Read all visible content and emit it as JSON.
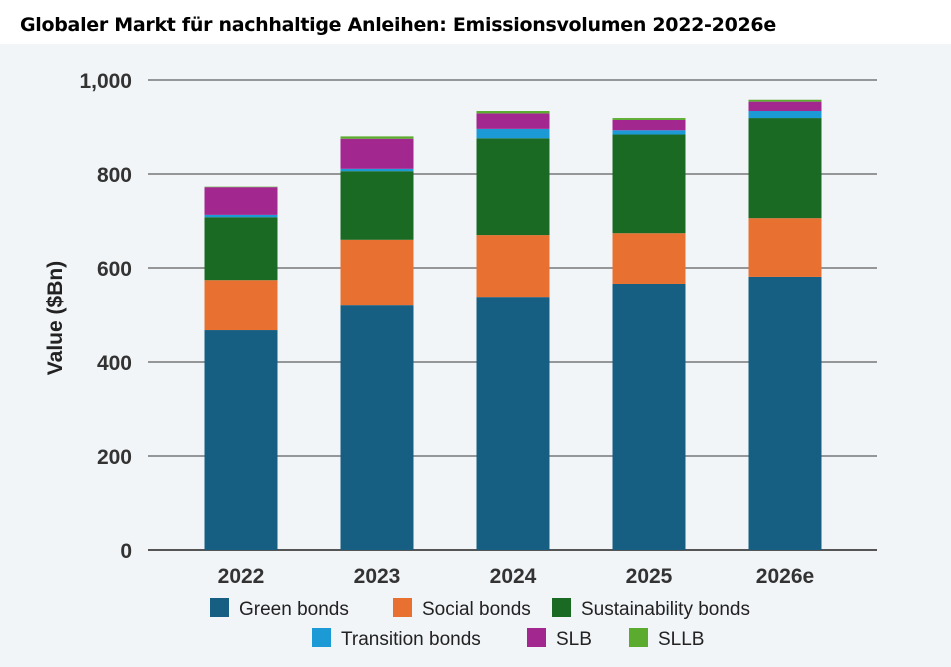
{
  "title": "Globaler Markt für nachhaltige Anleihen: Emissionsvolumen 2022-2026e",
  "chart_data": {
    "type": "bar",
    "stacked": true,
    "title": "Globaler Markt für nachhaltige Anleihen: Emissionsvolumen 2022-2026e",
    "xlabel": "",
    "ylabel": "Value ($Bn)",
    "ylim": [
      0,
      1000
    ],
    "yticks": [
      0,
      200,
      400,
      600,
      800,
      1000
    ],
    "ytick_labels": [
      "0",
      "200",
      "400",
      "600",
      "800",
      "1,000"
    ],
    "grid": true,
    "legend_position": "bottom",
    "categories": [
      "2022",
      "2023",
      "2024",
      "2025",
      "2026e"
    ],
    "series": [
      {
        "name": "Green bonds",
        "color": "#175f82",
        "values": [
          468,
          521,
          538,
          566,
          581
        ]
      },
      {
        "name": "Social bonds",
        "color": "#e87131",
        "values": [
          106,
          139,
          132,
          108,
          125
        ]
      },
      {
        "name": "Sustainability bonds",
        "color": "#1a6a23",
        "values": [
          134,
          146,
          206,
          210,
          213
        ]
      },
      {
        "name": "Transition bonds",
        "color": "#1b9ad6",
        "values": [
          5,
          5,
          20,
          9,
          15
        ]
      },
      {
        "name": "SLB",
        "color": "#a22890",
        "values": [
          59,
          64,
          33,
          22,
          20
        ]
      },
      {
        "name": "SLLB",
        "color": "#5aab2e",
        "values": [
          1,
          5,
          5,
          4,
          4
        ]
      }
    ]
  }
}
